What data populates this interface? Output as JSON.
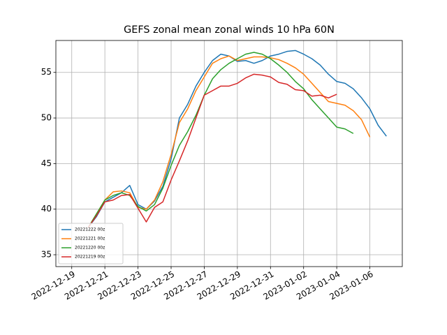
{
  "chart_data": {
    "type": "line",
    "title": "GEFS zonal mean zonal winds 10 hPa 60N",
    "x": [
      "2022-12-20T00:00",
      "2022-12-20T12:00",
      "2022-12-21T00:00",
      "2022-12-21T12:00",
      "2022-12-22T00:00",
      "2022-12-22T12:00",
      "2022-12-23T00:00",
      "2022-12-23T12:00",
      "2022-12-24T00:00",
      "2022-12-24T12:00",
      "2022-12-25T00:00",
      "2022-12-25T12:00",
      "2022-12-26T00:00",
      "2022-12-26T12:00",
      "2022-12-27T00:00",
      "2022-12-27T12:00",
      "2022-12-28T00:00",
      "2022-12-28T12:00",
      "2022-12-29T00:00",
      "2022-12-29T12:00",
      "2022-12-30T00:00",
      "2022-12-30T12:00",
      "2022-12-31T00:00",
      "2022-12-31T12:00",
      "2023-01-01T00:00",
      "2023-01-01T12:00",
      "2023-01-02T00:00",
      "2023-01-02T12:00",
      "2023-01-03T00:00",
      "2023-01-03T12:00",
      "2023-01-04T00:00",
      "2023-01-04T12:00",
      "2023-01-05T00:00",
      "2023-01-05T12:00",
      "2023-01-06T00:00",
      "2023-01-06T12:00",
      "2023-01-07T00:00"
    ],
    "series": [
      {
        "name": "20221222 00z",
        "color": "#1f77b4",
        "values": [
          38,
          39.2,
          40.8,
          41.3,
          41.8,
          42.6,
          40.5,
          40.0,
          40.9,
          42.5,
          45.5,
          50,
          51.5,
          53.5,
          55,
          56.3,
          57,
          56.8,
          56.2,
          56.3,
          56,
          56.3,
          56.8,
          57,
          57.3,
          57.4,
          57,
          56.5,
          55.8,
          54.8,
          54,
          53.8,
          53.2,
          52.2,
          51,
          49.2,
          48
        ]
      },
      {
        "name": "20221221 00z",
        "color": "#ff7f0e",
        "values": [
          38,
          39.5,
          41,
          41.9,
          42,
          41.8,
          40.2,
          40,
          41,
          43,
          46,
          49.5,
          51,
          53,
          54.5,
          56,
          56.5,
          56.8,
          56.3,
          56.5,
          56.7,
          56.7,
          56.6,
          56.4,
          56,
          55.5,
          54.8,
          53.8,
          52.8,
          51.8,
          51.6,
          51.4,
          50.8,
          49.8,
          47.9,
          null,
          null
        ]
      },
      {
        "name": "20221220 00z",
        "color": "#2ca02c",
        "values": [
          38,
          39.5,
          41,
          41.5,
          41.8,
          41.5,
          40.3,
          39.8,
          40.5,
          42.3,
          44.8,
          47,
          48.5,
          50.3,
          52.5,
          54.3,
          55.3,
          56,
          56.5,
          57,
          57.2,
          57,
          56.5,
          55.8,
          55,
          54,
          53.2,
          52,
          51,
          50,
          49,
          48.8,
          48.3,
          null,
          null,
          null,
          null
        ]
      },
      {
        "name": "20221219 00z",
        "color": "#d62728",
        "values": [
          38,
          39.3,
          40.8,
          41.0,
          41.5,
          41.6,
          40.1,
          38.6,
          40.2,
          40.8,
          43.2,
          45.3,
          47.5,
          50,
          52.5,
          53,
          53.5,
          53.5,
          53.8,
          54.4,
          54.8,
          54.7,
          54.5,
          53.9,
          53.7,
          53.1,
          53,
          52.4,
          52.5,
          52.2,
          52.6,
          null,
          null,
          null,
          null,
          null,
          null
        ]
      }
    ],
    "xlim": [
      "2022-12-18T01:00",
      "2023-01-07T23:00"
    ],
    "xticks": [
      "2022-12-19",
      "2022-12-21",
      "2022-12-23",
      "2022-12-25",
      "2022-12-27",
      "2022-12-29",
      "2022-12-31",
      "2023-01-02",
      "2023-01-04",
      "2023-01-06"
    ],
    "ylim": [
      33.7,
      58.5
    ],
    "yticks": [
      35,
      40,
      45,
      50,
      55
    ],
    "grid": true,
    "legend": "lower left"
  }
}
